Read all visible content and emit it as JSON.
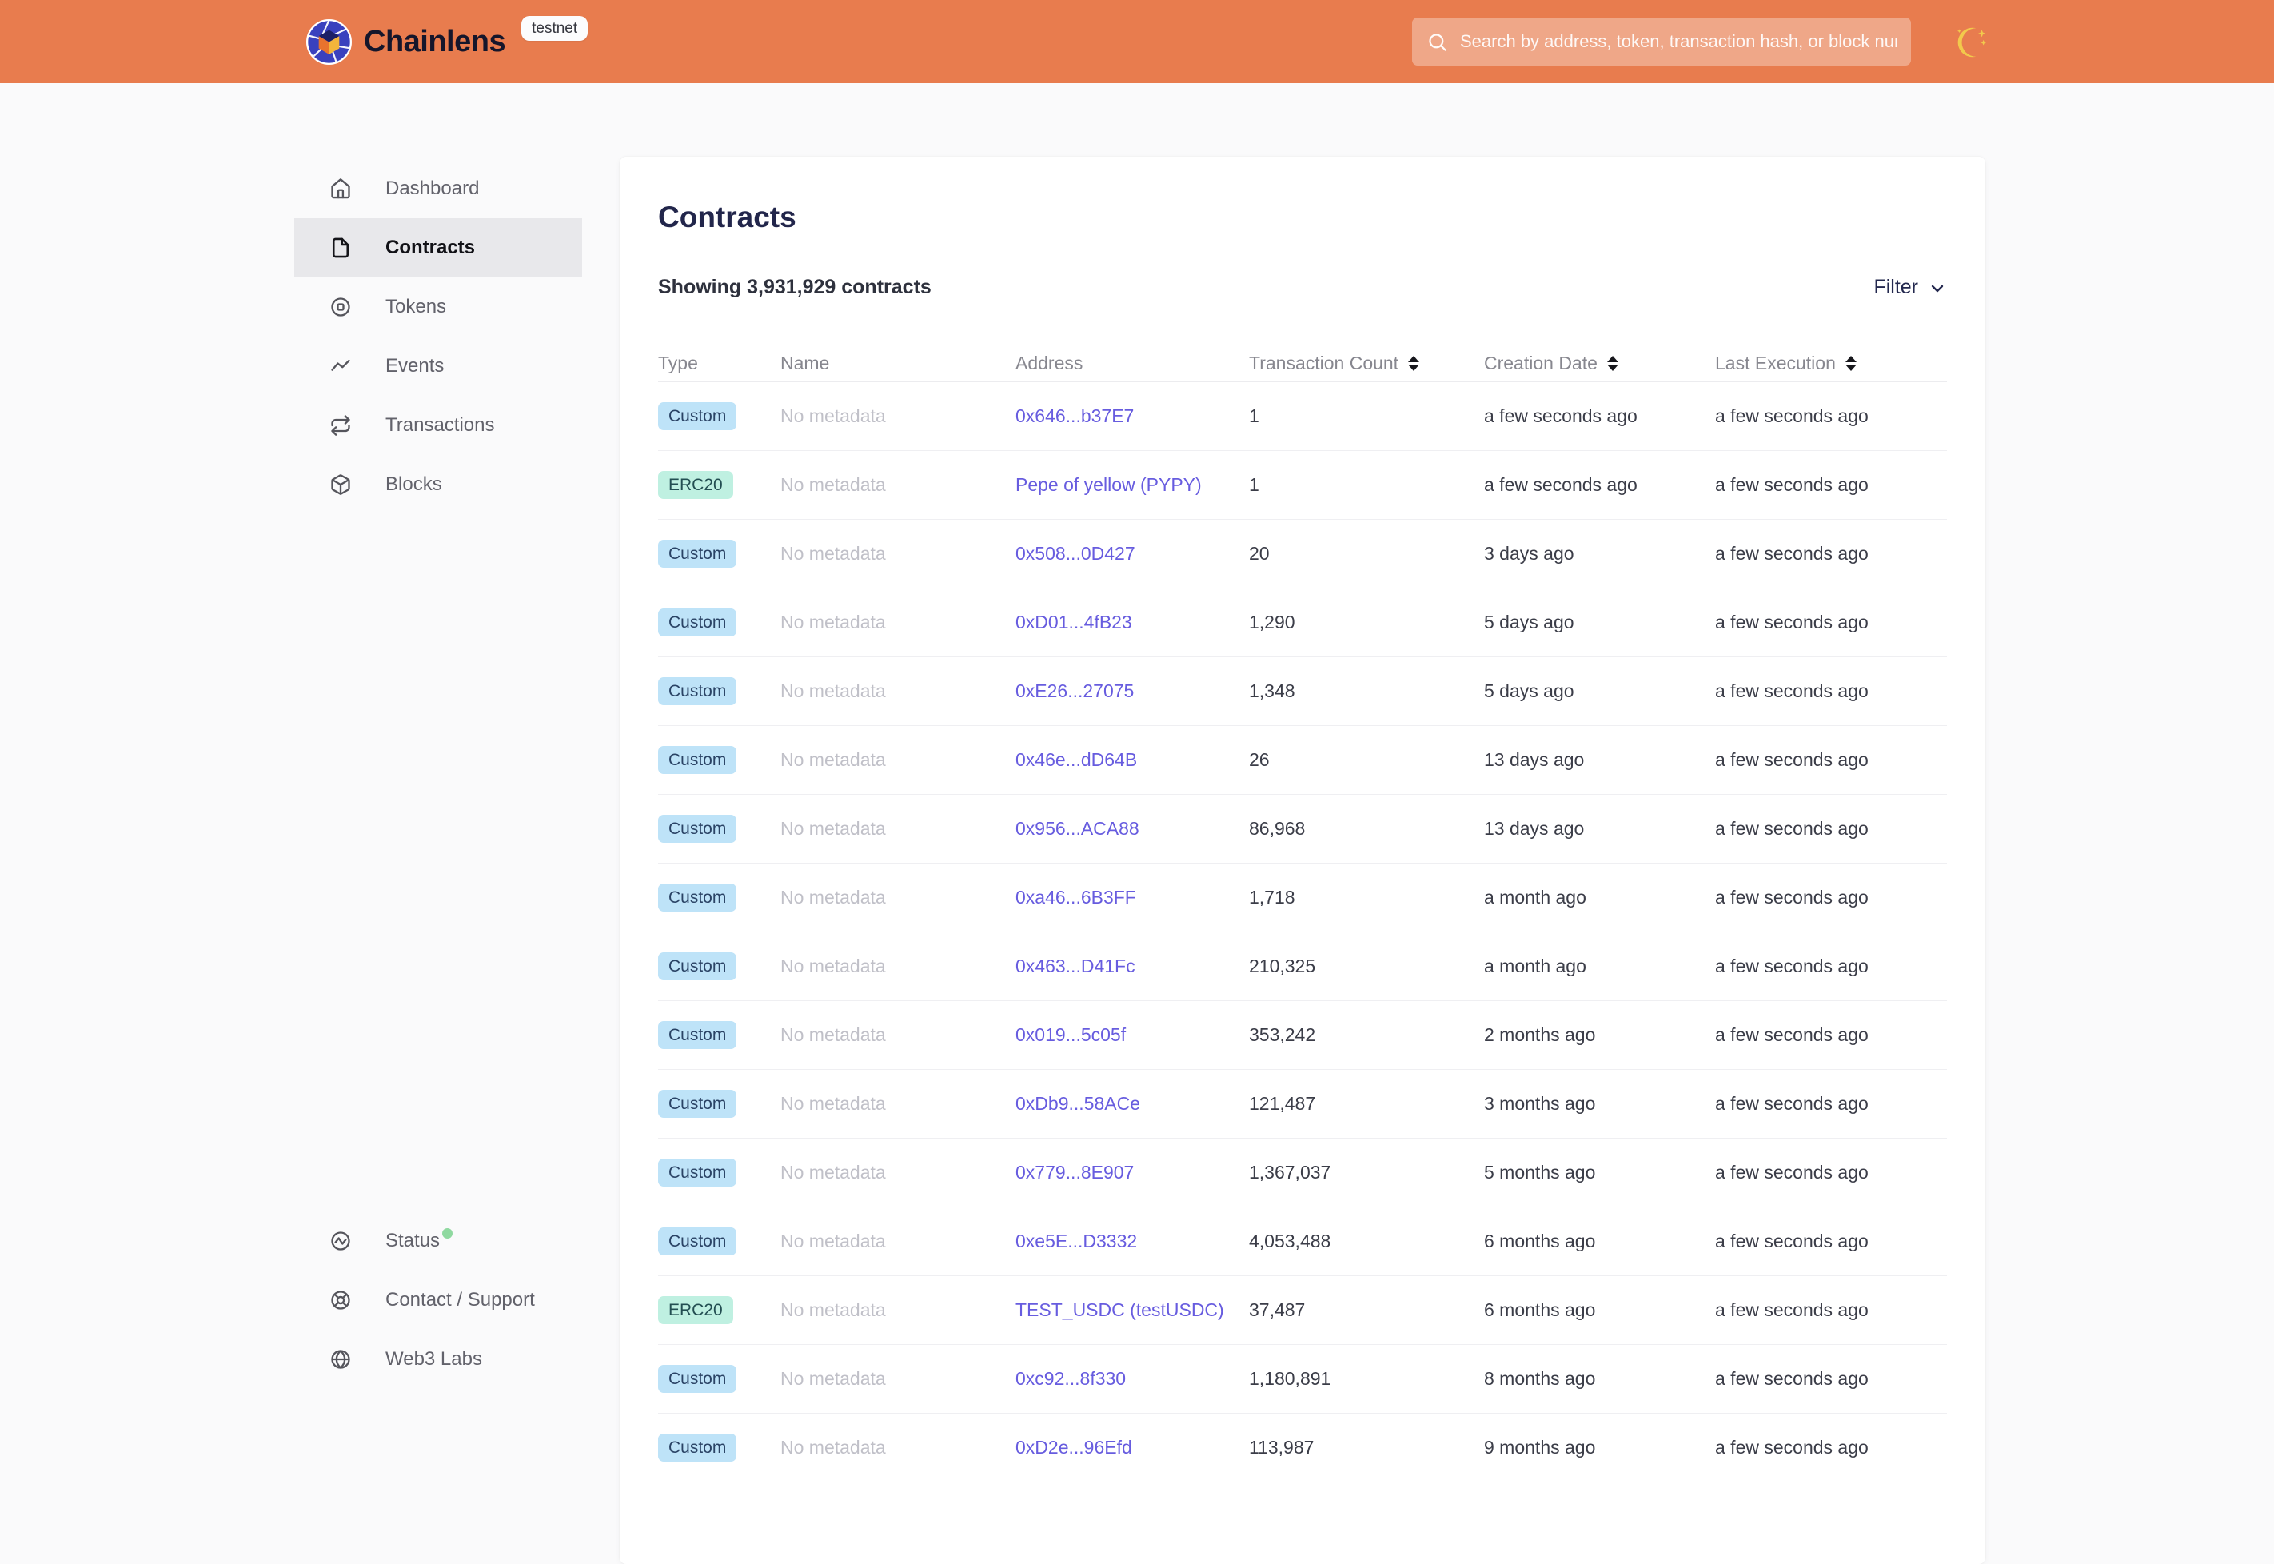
{
  "header": {
    "brand": "Chainlens",
    "env_badge": "testnet",
    "search_placeholder": "Search by address, token, transaction hash, or block number"
  },
  "sidebar": {
    "items": [
      {
        "label": "Dashboard",
        "icon": "home-icon",
        "active": false
      },
      {
        "label": "Contracts",
        "icon": "file-icon",
        "active": true
      },
      {
        "label": "Tokens",
        "icon": "tokens-icon",
        "active": false
      },
      {
        "label": "Events",
        "icon": "events-icon",
        "active": false
      },
      {
        "label": "Transactions",
        "icon": "transactions-icon",
        "active": false
      },
      {
        "label": "Blocks",
        "icon": "blocks-icon",
        "active": false
      }
    ],
    "footer_items": [
      {
        "label": "Status",
        "icon": "status-icon",
        "active": false,
        "online_dot": true
      },
      {
        "label": "Contact / Support",
        "icon": "support-icon",
        "active": false,
        "online_dot": false
      },
      {
        "label": "Web3 Labs",
        "icon": "globe-icon",
        "active": false,
        "online_dot": false
      }
    ]
  },
  "main": {
    "title": "Contracts",
    "summary": "Showing 3,931,929 contracts",
    "filter_label": "Filter",
    "table": {
      "columns": [
        {
          "label": "Type",
          "sortable": false
        },
        {
          "label": "Name",
          "sortable": false
        },
        {
          "label": "Address",
          "sortable": false
        },
        {
          "label": "Transaction Count",
          "sortable": true
        },
        {
          "label": "Creation Date",
          "sortable": true
        },
        {
          "label": "Last Execution",
          "sortable": true
        }
      ],
      "rows": [
        {
          "type": "Custom",
          "name": "No metadata",
          "address": "0x646...b37E7",
          "tx_count": "1",
          "creation": "a few seconds ago",
          "last_execution": "a few seconds ago"
        },
        {
          "type": "ERC20",
          "name": "No metadata",
          "address": "Pepe of yellow (PYPY)",
          "tx_count": "1",
          "creation": "a few seconds ago",
          "last_execution": "a few seconds ago"
        },
        {
          "type": "Custom",
          "name": "No metadata",
          "address": "0x508...0D427",
          "tx_count": "20",
          "creation": "3 days ago",
          "last_execution": "a few seconds ago"
        },
        {
          "type": "Custom",
          "name": "No metadata",
          "address": "0xD01...4fB23",
          "tx_count": "1,290",
          "creation": "5 days ago",
          "last_execution": "a few seconds ago"
        },
        {
          "type": "Custom",
          "name": "No metadata",
          "address": "0xE26...27075",
          "tx_count": "1,348",
          "creation": "5 days ago",
          "last_execution": "a few seconds ago"
        },
        {
          "type": "Custom",
          "name": "No metadata",
          "address": "0x46e...dD64B",
          "tx_count": "26",
          "creation": "13 days ago",
          "last_execution": "a few seconds ago"
        },
        {
          "type": "Custom",
          "name": "No metadata",
          "address": "0x956...ACA88",
          "tx_count": "86,968",
          "creation": "13 days ago",
          "last_execution": "a few seconds ago"
        },
        {
          "type": "Custom",
          "name": "No metadata",
          "address": "0xa46...6B3FF",
          "tx_count": "1,718",
          "creation": "a month ago",
          "last_execution": "a few seconds ago"
        },
        {
          "type": "Custom",
          "name": "No metadata",
          "address": "0x463...D41Fc",
          "tx_count": "210,325",
          "creation": "a month ago",
          "last_execution": "a few seconds ago"
        },
        {
          "type": "Custom",
          "name": "No metadata",
          "address": "0x019...5c05f",
          "tx_count": "353,242",
          "creation": "2 months ago",
          "last_execution": "a few seconds ago"
        },
        {
          "type": "Custom",
          "name": "No metadata",
          "address": "0xDb9...58ACe",
          "tx_count": "121,487",
          "creation": "3 months ago",
          "last_execution": "a few seconds ago"
        },
        {
          "type": "Custom",
          "name": "No metadata",
          "address": "0x779...8E907",
          "tx_count": "1,367,037",
          "creation": "5 months ago",
          "last_execution": "a few seconds ago"
        },
        {
          "type": "Custom",
          "name": "No metadata",
          "address": "0xe5E...D3332",
          "tx_count": "4,053,488",
          "creation": "6 months ago",
          "last_execution": "a few seconds ago"
        },
        {
          "type": "ERC20",
          "name": "No metadata",
          "address": "TEST_USDC (testUSDC)",
          "tx_count": "37,487",
          "creation": "6 months ago",
          "last_execution": "a few seconds ago"
        },
        {
          "type": "Custom",
          "name": "No metadata",
          "address": "0xc92...8f330",
          "tx_count": "1,180,891",
          "creation": "8 months ago",
          "last_execution": "a few seconds ago"
        },
        {
          "type": "Custom",
          "name": "No metadata",
          "address": "0xD2e...96Efd",
          "tx_count": "113,987",
          "creation": "9 months ago",
          "last_execution": "a few seconds ago"
        }
      ]
    }
  },
  "colors": {
    "header_orange": "#E87C4E",
    "link_purple": "#675CDF",
    "badge_custom_bg": "#BEE3F8",
    "badge_custom_text": "#2A4365",
    "badge_erc20_bg": "#BFF0E1",
    "badge_erc20_text": "#234E52",
    "status_online_green": "#8FD9A0",
    "title_navy": "#22264B"
  }
}
